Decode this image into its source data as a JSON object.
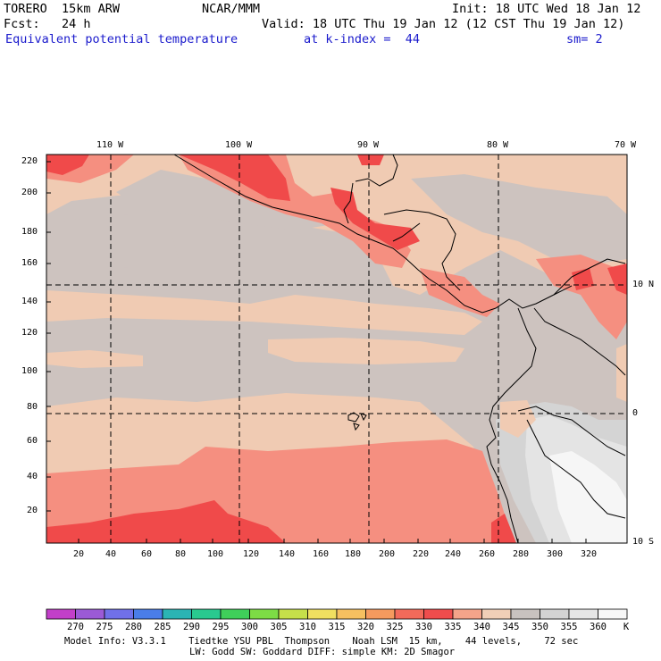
{
  "header": {
    "model": "TORERO  15km ARW",
    "center": "NCAR/MMM",
    "init": "Init: 18 UTC Wed 18 Jan 12",
    "fcst": "Fcst:   24 h",
    "valid": "Valid: 18 UTC Thu 19 Jan 12 (12 CST Thu 19 Jan 12)",
    "field": "Equivalent potential temperature",
    "level": "at k-index =  44",
    "smooth": "sm= 2"
  },
  "axes": {
    "longitude_labels": [
      "110 W",
      "100 W",
      "90 W",
      "80 W",
      "70 W"
    ],
    "latitude_labels": [
      "10 N",
      "0",
      "10 S"
    ],
    "y_ticks": [
      "220",
      "200",
      "180",
      "160",
      "140",
      "120",
      "100",
      "80",
      "60",
      "40",
      "20"
    ],
    "x_ticks": [
      "20",
      "40",
      "60",
      "80",
      "100",
      "120",
      "140",
      "160",
      "180",
      "200",
      "220",
      "240",
      "260",
      "280",
      "300",
      "320"
    ]
  },
  "colorbar": {
    "labels": [
      "270",
      "275",
      "280",
      "285",
      "290",
      "295",
      "300",
      "305",
      "310",
      "315",
      "320",
      "325",
      "330",
      "335",
      "340",
      "345",
      "350",
      "355",
      "360"
    ],
    "unit": "K",
    "colors": [
      "#c23fc9",
      "#9b5ad6",
      "#7070e8",
      "#4a7de8",
      "#2bb4b4",
      "#29c98f",
      "#3fcf5a",
      "#7ddc45",
      "#c6e04a",
      "#f0e060",
      "#f6c060",
      "#f59a5e",
      "#f26a5a",
      "#ef4d4d",
      "#f4a48a",
      "#f1cfb7",
      "#c8c2bf",
      "#d3d3d3",
      "#e6e6e6",
      "#f7f7f7"
    ]
  },
  "map_colors": {
    "c330": "#f04a4a",
    "c335": "#f58f80",
    "c340": "#f0cbb3",
    "c345": "#cdc3bf",
    "c350": "#d4d4d4",
    "c355": "#e4e4e4",
    "c360": "#f6f6f6"
  },
  "footer": {
    "line1": "Model Info: V3.3.1    Tiedtke YSU PBL  Thompson    Noah LSM  15 km,    44 levels,    72 sec",
    "line2": "LW: Godd SW: Goddard DIFF: simple KM: 2D Smagor"
  }
}
